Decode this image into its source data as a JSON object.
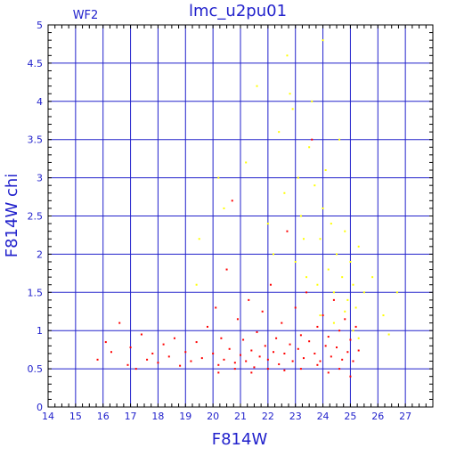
{
  "chart_data": {
    "type": "scatter",
    "title": "lmc_u2pu01",
    "panel_label": "WF2",
    "xlabel": "F814W",
    "ylabel": "F814W  chi",
    "xlim": [
      14,
      28
    ],
    "ylim": [
      0,
      5
    ],
    "x_ticks": [
      "14",
      "15",
      "16",
      "17",
      "18",
      "19",
      "20",
      "21",
      "22",
      "23",
      "24",
      "25",
      "26",
      "27"
    ],
    "y_ticks": [
      "0",
      "0.5",
      "1",
      "1.5",
      "2",
      "2.5",
      "3",
      "3.5",
      "4",
      "4.5",
      "5"
    ],
    "grid": true,
    "colors": {
      "frame": "#000000",
      "grid": "#2222cc",
      "text": "#2222cc"
    },
    "series": [
      {
        "color": "#ff0000",
        "points": [
          [
            15.8,
            0.62
          ],
          [
            16.1,
            0.85
          ],
          [
            16.3,
            0.72
          ],
          [
            16.6,
            1.1
          ],
          [
            16.9,
            0.55
          ],
          [
            17.0,
            0.78
          ],
          [
            17.2,
            0.5
          ],
          [
            17.4,
            0.95
          ],
          [
            17.6,
            0.62
          ],
          [
            17.8,
            0.7
          ],
          [
            18.0,
            0.58
          ],
          [
            18.2,
            0.82
          ],
          [
            18.4,
            0.66
          ],
          [
            18.6,
            0.9
          ],
          [
            18.8,
            0.54
          ],
          [
            19.0,
            0.72
          ],
          [
            19.2,
            0.6
          ],
          [
            19.4,
            0.85
          ],
          [
            19.6,
            0.64
          ],
          [
            19.8,
            1.05
          ],
          [
            20.0,
            0.7
          ],
          [
            20.1,
            1.3
          ],
          [
            20.2,
            0.55
          ],
          [
            20.3,
            0.9
          ],
          [
            20.4,
            0.62
          ],
          [
            20.5,
            1.8
          ],
          [
            20.6,
            0.76
          ],
          [
            20.7,
            2.7
          ],
          [
            20.8,
            0.58
          ],
          [
            20.9,
            1.15
          ],
          [
            21.0,
            0.68
          ],
          [
            21.1,
            0.88
          ],
          [
            21.2,
            0.6
          ],
          [
            21.3,
            1.4
          ],
          [
            21.4,
            0.74
          ],
          [
            21.5,
            0.52
          ],
          [
            21.6,
            0.98
          ],
          [
            21.7,
            0.66
          ],
          [
            21.8,
            1.25
          ],
          [
            21.9,
            0.8
          ],
          [
            22.0,
            0.62
          ],
          [
            22.1,
            1.6
          ],
          [
            22.2,
            0.72
          ],
          [
            22.3,
            0.9
          ],
          [
            22.4,
            0.56
          ],
          [
            22.5,
            1.1
          ],
          [
            22.6,
            0.7
          ],
          [
            22.7,
            2.3
          ],
          [
            22.8,
            0.82
          ],
          [
            22.9,
            0.6
          ],
          [
            23.0,
            1.3
          ],
          [
            23.1,
            0.76
          ],
          [
            23.2,
            0.94
          ],
          [
            23.3,
            0.64
          ],
          [
            23.4,
            1.5
          ],
          [
            23.5,
            0.86
          ],
          [
            23.6,
            3.5
          ],
          [
            23.7,
            0.7
          ],
          [
            23.8,
            1.05
          ],
          [
            23.9,
            0.6
          ],
          [
            24.0,
            1.2
          ],
          [
            24.1,
            0.8
          ],
          [
            24.2,
            0.92
          ],
          [
            24.3,
            0.66
          ],
          [
            24.4,
            1.4
          ],
          [
            24.5,
            0.78
          ],
          [
            24.6,
            1.0
          ],
          [
            24.7,
            0.62
          ],
          [
            24.8,
            1.15
          ],
          [
            24.9,
            0.72
          ],
          [
            25.0,
            0.88
          ],
          [
            25.1,
            0.6
          ],
          [
            25.2,
            1.05
          ],
          [
            25.3,
            0.74
          ],
          [
            25.0,
            0.4
          ],
          [
            24.6,
            0.5
          ],
          [
            24.2,
            0.45
          ],
          [
            23.8,
            0.55
          ],
          [
            23.2,
            0.5
          ],
          [
            22.6,
            0.48
          ],
          [
            22.0,
            0.5
          ],
          [
            21.4,
            0.45
          ],
          [
            20.8,
            0.5
          ],
          [
            20.2,
            0.45
          ]
        ]
      },
      {
        "color": "#ffff00",
        "points": [
          [
            19.4,
            1.6
          ],
          [
            19.5,
            2.2
          ],
          [
            20.2,
            3.0
          ],
          [
            20.4,
            2.6
          ],
          [
            21.2,
            3.2
          ],
          [
            21.6,
            4.2
          ],
          [
            22.0,
            2.4
          ],
          [
            22.2,
            2.0
          ],
          [
            22.4,
            3.6
          ],
          [
            22.6,
            2.8
          ],
          [
            22.7,
            4.6
          ],
          [
            22.8,
            4.1
          ],
          [
            22.9,
            3.9
          ],
          [
            23.0,
            1.9
          ],
          [
            23.1,
            3.0
          ],
          [
            23.2,
            2.5
          ],
          [
            23.3,
            2.2
          ],
          [
            23.4,
            1.7
          ],
          [
            23.5,
            3.4
          ],
          [
            23.6,
            4.0
          ],
          [
            23.7,
            2.9
          ],
          [
            23.8,
            1.6
          ],
          [
            23.9,
            2.2
          ],
          [
            24.0,
            2.6
          ],
          [
            24.1,
            3.1
          ],
          [
            24.2,
            1.8
          ],
          [
            24.3,
            2.4
          ],
          [
            24.4,
            1.5
          ],
          [
            24.5,
            2.0
          ],
          [
            24.6,
            3.5
          ],
          [
            24.7,
            1.7
          ],
          [
            24.8,
            2.3
          ],
          [
            24.9,
            1.4
          ],
          [
            25.0,
            1.9
          ],
          [
            25.1,
            1.6
          ],
          [
            25.2,
            1.3
          ],
          [
            25.3,
            2.1
          ],
          [
            25.5,
            1.5
          ],
          [
            25.8,
            1.7
          ],
          [
            26.2,
            1.2
          ],
          [
            26.4,
            0.95
          ],
          [
            26.7,
            1.5
          ],
          [
            24.0,
            4.8
          ],
          [
            23.9,
            1.2
          ],
          [
            24.4,
            1.1
          ],
          [
            24.8,
            1.25
          ],
          [
            25.1,
            1.0
          ],
          [
            25.3,
            0.9
          ]
        ]
      }
    ]
  }
}
